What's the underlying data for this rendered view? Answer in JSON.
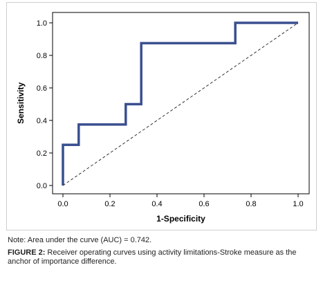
{
  "chart_data": {
    "type": "line",
    "xlabel": "1-Specificity",
    "ylabel": "Sensitivity",
    "xlim": [
      0,
      1
    ],
    "ylim": [
      0,
      1
    ],
    "x_ticks": [
      "0.0",
      "0.2",
      "0.4",
      "0.6",
      "0.8",
      "1.0"
    ],
    "y_ticks": [
      "0.0",
      "0.2",
      "0.4",
      "0.6",
      "0.8",
      "1.0"
    ],
    "grid": false,
    "legend": "none",
    "series": [
      {
        "line_color": "#3a4f8f",
        "style": "step",
        "x": [
          0.0,
          0.0,
          0.067,
          0.067,
          0.267,
          0.267,
          0.333,
          0.333,
          0.733,
          0.733,
          1.0
        ],
        "y": [
          0.0,
          0.25,
          0.25,
          0.375,
          0.375,
          0.5,
          0.5,
          0.875,
          0.875,
          1.0,
          1.0
        ]
      },
      {
        "line_color": "#333333",
        "style": "dashed",
        "x": [
          0.0,
          1.0
        ],
        "y": [
          0.0,
          1.0
        ]
      }
    ]
  },
  "note": "Note: Area under the curve (AUC) = 0.742.",
  "caption": {
    "label": "FIGURE 2:",
    "text": "Receiver operating curves using activity limitations-Stroke measure as the anchor of importance difference."
  }
}
